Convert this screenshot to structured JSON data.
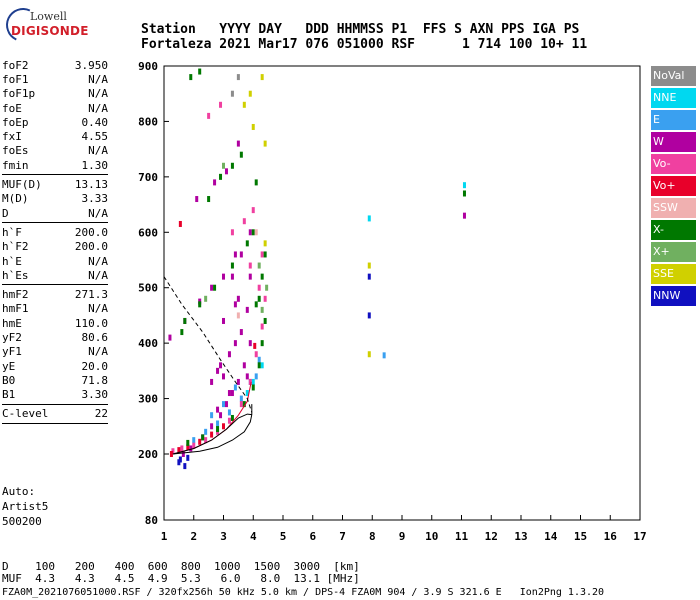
{
  "logo": {
    "line1": "Lowell",
    "line2": "DIGISONDE"
  },
  "header": {
    "labels": [
      "Station",
      "YYYY",
      "DAY",
      "DDD",
      "HHMMSS",
      "P1",
      "FFS",
      "S",
      "AXN",
      "PPS",
      "IGA",
      "PS"
    ],
    "values": [
      "Fortaleza",
      "2021",
      "Mar17",
      "076",
      "051000",
      "RSF",
      "1",
      "714",
      "100",
      "10+",
      "11"
    ]
  },
  "params": [
    {
      "name": "foF2",
      "value": "3.950"
    },
    {
      "name": "foF1",
      "value": "N/A"
    },
    {
      "name": "foF1p",
      "value": "N/A"
    },
    {
      "name": "foE",
      "value": "N/A"
    },
    {
      "name": "foEp",
      "value": "0.40"
    },
    {
      "name": "fxI",
      "value": "4.55"
    },
    {
      "name": "foEs",
      "value": "N/A"
    },
    {
      "name": "fmin",
      "value": "1.30"
    },
    {
      "sep": true
    },
    {
      "name": "MUF(D)",
      "value": "13.13"
    },
    {
      "name": "M(D)",
      "value": "3.33"
    },
    {
      "name": "D",
      "value": "N/A"
    },
    {
      "sep": true
    },
    {
      "name": "h`F",
      "value": "200.0"
    },
    {
      "name": "h`F2",
      "value": "200.0"
    },
    {
      "name": "h`E",
      "value": "N/A"
    },
    {
      "name": "h`Es",
      "value": "N/A"
    },
    {
      "sep": true
    },
    {
      "name": "hmF2",
      "value": "271.3"
    },
    {
      "name": "hmF1",
      "value": "N/A"
    },
    {
      "name": "hmE",
      "value": "110.0"
    },
    {
      "name": "yF2",
      "value": "80.6"
    },
    {
      "name": "yF1",
      "value": "N/A"
    },
    {
      "name": "yE",
      "value": "20.0"
    },
    {
      "name": "B0",
      "value": "71.8"
    },
    {
      "name": "B1",
      "value": "3.30"
    },
    {
      "sep": true
    },
    {
      "name": "C-level",
      "value": "22"
    },
    {
      "sep": true
    }
  ],
  "auto": {
    "line1": "Auto:",
    "line2": "Artist5",
    "line3": "500200"
  },
  "legend": [
    {
      "label": "NoVal",
      "color": "#8c8c8c"
    },
    {
      "label": "NNE",
      "color": "#00d8f0"
    },
    {
      "label": "E",
      "color": "#3aa0f0"
    },
    {
      "label": "W",
      "color": "#b000a0"
    },
    {
      "label": "Vo-",
      "color": "#f040a0"
    },
    {
      "label": "Vo+",
      "color": "#e8002a"
    },
    {
      "label": "SSW",
      "color": "#f0b0b0"
    },
    {
      "label": "X-",
      "color": "#007800"
    },
    {
      "label": "X+",
      "color": "#70b060"
    },
    {
      "label": "SSE",
      "color": "#d0d000"
    },
    {
      "label": "NNW",
      "color": "#1010c0"
    }
  ],
  "footer": {
    "row1_label": "D",
    "row1_values": [
      "100",
      "200",
      "400",
      "600",
      "800",
      "1000",
      "1500",
      "3000",
      "[km]"
    ],
    "row2_label": "MUF",
    "row2_values": [
      "4.3",
      "4.3",
      "4.5",
      "4.9",
      "5.3",
      "6.0",
      "8.0",
      "13.1",
      "[MHz]"
    ],
    "info": "FZA0M_2021076051000.RSF / 320fx256h 50 kHz 5.0 km / DPS-4 FZA0M 904 / 3.9 S 321.6 E   Ion2Png 1.3.20"
  },
  "chart_data": {
    "type": "scatter",
    "title": "",
    "xlabel": "",
    "ylabel": "",
    "xlim": [
      1,
      17
    ],
    "ylim": [
      80,
      900
    ],
    "xticks": [
      1,
      2,
      3,
      4,
      5,
      6,
      7,
      8,
      9,
      10,
      11,
      12,
      13,
      14,
      15,
      16,
      17
    ],
    "yticks": [
      80,
      200,
      300,
      400,
      500,
      600,
      700,
      800,
      900
    ],
    "grid": false,
    "legend_placement": "right",
    "series": [
      {
        "name": "W",
        "color": "#b000a0",
        "points": [
          [
            2.3,
            230
          ],
          [
            2.6,
            250
          ],
          [
            2.9,
            270
          ],
          [
            3.1,
            290
          ],
          [
            3.3,
            310
          ],
          [
            3.5,
            330
          ],
          [
            3.7,
            360
          ],
          [
            3.9,
            400
          ],
          [
            3.0,
            340
          ],
          [
            2.8,
            350
          ],
          [
            3.2,
            380
          ],
          [
            3.6,
            420
          ],
          [
            3.4,
            400
          ],
          [
            2.6,
            330
          ],
          [
            2.9,
            360
          ],
          [
            3.8,
            460
          ],
          [
            3.5,
            480
          ],
          [
            3.9,
            520
          ],
          [
            3.3,
            520
          ],
          [
            3.6,
            560
          ],
          [
            2.8,
            280
          ],
          [
            3.2,
            310
          ],
          [
            3.8,
            340
          ],
          [
            1.2,
            410
          ],
          [
            1.7,
            440
          ],
          [
            2.2,
            475
          ],
          [
            2.6,
            500
          ],
          [
            3.0,
            520
          ],
          [
            3.4,
            560
          ],
          [
            3.9,
            600
          ],
          [
            2.1,
            660
          ],
          [
            2.7,
            690
          ],
          [
            3.1,
            710
          ],
          [
            3.5,
            760
          ],
          [
            11.1,
            630
          ],
          [
            1.65,
            200
          ],
          [
            1.9,
            210
          ],
          [
            3.4,
            470
          ],
          [
            3.0,
            440
          ]
        ]
      },
      {
        "name": "E",
        "color": "#3aa0f0",
        "points": [
          [
            2.0,
            225
          ],
          [
            2.4,
            240
          ],
          [
            2.8,
            255
          ],
          [
            3.2,
            275
          ],
          [
            3.6,
            300
          ],
          [
            3.9,
            330
          ],
          [
            4.1,
            340
          ],
          [
            2.6,
            270
          ],
          [
            3.0,
            290
          ],
          [
            3.4,
            320
          ],
          [
            4.2,
            370
          ],
          [
            8.4,
            378
          ]
        ]
      },
      {
        "name": "NNE",
        "color": "#00d8f0",
        "points": [
          [
            3.8,
            310
          ],
          [
            4.0,
            330
          ],
          [
            4.3,
            360
          ],
          [
            7.9,
            625
          ],
          [
            11.1,
            685
          ]
        ]
      },
      {
        "name": "Vo-",
        "color": "#f040a0",
        "points": [
          [
            1.3,
            205
          ],
          [
            1.6,
            210
          ],
          [
            2.0,
            215
          ],
          [
            2.4,
            225
          ],
          [
            2.8,
            240
          ],
          [
            3.2,
            260
          ],
          [
            3.6,
            290
          ],
          [
            3.9,
            330
          ],
          [
            4.1,
            380
          ],
          [
            4.3,
            430
          ],
          [
            4.4,
            480
          ],
          [
            3.9,
            540
          ],
          [
            4.3,
            560
          ],
          [
            4.2,
            500
          ],
          [
            3.3,
            600
          ],
          [
            3.7,
            620
          ],
          [
            4.0,
            640
          ],
          [
            2.5,
            810
          ],
          [
            2.9,
            830
          ]
        ]
      },
      {
        "name": "Vo+",
        "color": "#e8002a",
        "points": [
          [
            1.25,
            200
          ],
          [
            1.5,
            207
          ],
          [
            1.8,
            212
          ],
          [
            2.2,
            222
          ],
          [
            2.6,
            235
          ],
          [
            3.0,
            250
          ],
          [
            1.55,
            615
          ],
          [
            4.05,
            395
          ]
        ]
      },
      {
        "name": "X-",
        "color": "#007800",
        "points": [
          [
            1.8,
            220
          ],
          [
            2.3,
            230
          ],
          [
            2.8,
            245
          ],
          [
            3.3,
            265
          ],
          [
            3.7,
            290
          ],
          [
            4.0,
            320
          ],
          [
            4.2,
            360
          ],
          [
            4.3,
            400
          ],
          [
            4.4,
            440
          ],
          [
            4.1,
            470
          ],
          [
            4.3,
            520
          ],
          [
            4.4,
            560
          ],
          [
            4.0,
            600
          ],
          [
            3.8,
            580
          ],
          [
            3.3,
            540
          ],
          [
            2.7,
            500
          ],
          [
            2.2,
            470
          ],
          [
            1.7,
            440
          ],
          [
            1.6,
            420
          ],
          [
            2.5,
            660
          ],
          [
            2.9,
            700
          ],
          [
            3.3,
            720
          ],
          [
            3.6,
            740
          ],
          [
            4.1,
            690
          ],
          [
            1.9,
            880
          ],
          [
            2.2,
            890
          ],
          [
            4.2,
            480
          ],
          [
            11.1,
            670
          ]
        ]
      },
      {
        "name": "X+",
        "color": "#70b060",
        "points": [
          [
            4.3,
            460
          ],
          [
            4.45,
            500
          ],
          [
            4.2,
            540
          ],
          [
            2.4,
            480
          ],
          [
            3.0,
            720
          ]
        ]
      },
      {
        "name": "SSE",
        "color": "#d0d000",
        "points": [
          [
            3.7,
            830
          ],
          [
            3.9,
            850
          ],
          [
            4.0,
            790
          ],
          [
            4.3,
            880
          ],
          [
            4.4,
            760
          ],
          [
            7.9,
            540
          ],
          [
            7.9,
            380
          ],
          [
            4.4,
            580
          ]
        ]
      },
      {
        "name": "NNW",
        "color": "#1010c0",
        "points": [
          [
            1.5,
            185
          ],
          [
            1.7,
            178
          ],
          [
            1.8,
            193
          ],
          [
            1.55,
            190
          ],
          [
            7.9,
            520
          ],
          [
            7.9,
            450
          ]
        ]
      },
      {
        "name": "SSW",
        "color": "#f0b0b0",
        "points": [
          [
            4.1,
            600
          ],
          [
            3.5,
            450
          ]
        ]
      },
      {
        "name": "NoVal",
        "color": "#8c8c8c",
        "points": [
          [
            3.5,
            880
          ],
          [
            3.3,
            850
          ]
        ]
      }
    ],
    "trace_virtual": [
      [
        1.3,
        200
      ],
      [
        2.0,
        210
      ],
      [
        2.6,
        225
      ],
      [
        3.1,
        245
      ],
      [
        3.5,
        270
      ],
      [
        3.8,
        295
      ],
      [
        3.93,
        330
      ]
    ],
    "trace_profile": [
      [
        1.3,
        200
      ],
      [
        2.0,
        210
      ],
      [
        2.6,
        225
      ],
      [
        3.1,
        245
      ],
      [
        3.5,
        265
      ],
      [
        3.8,
        272
      ],
      [
        3.95,
        271
      ]
    ],
    "trace_dashed": [
      [
        1.0,
        520
      ],
      [
        1.6,
        470
      ],
      [
        2.3,
        420
      ],
      [
        2.9,
        370
      ],
      [
        3.4,
        330
      ],
      [
        3.8,
        300
      ],
      [
        3.95,
        275
      ]
    ],
    "trace_lower": [
      [
        1.3,
        200
      ],
      [
        2.2,
        205
      ],
      [
        2.8,
        212
      ],
      [
        3.3,
        225
      ],
      [
        3.7,
        240
      ],
      [
        3.9,
        258
      ],
      [
        3.95,
        271
      ],
      [
        3.95,
        290
      ]
    ]
  }
}
